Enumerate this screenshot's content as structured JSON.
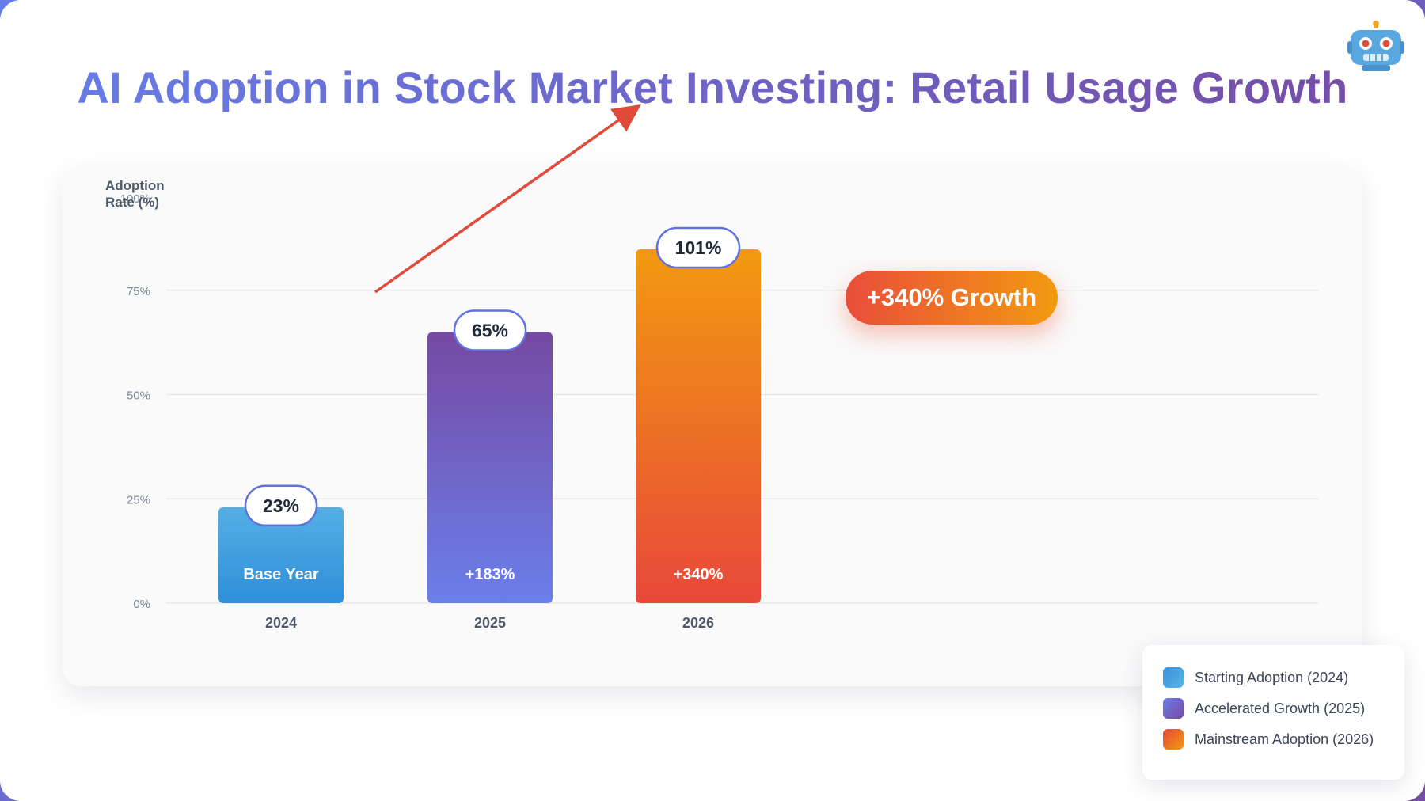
{
  "title": "AI Adoption in Stock Market Investing: Retail Usage Growth",
  "icons": {
    "robot": "robot-icon"
  },
  "colors": {
    "bar_2024": [
      "#2f8fd8",
      "#55aee5"
    ],
    "bar_2025": [
      "#6a7fea",
      "#7649a2"
    ],
    "bar_2026": [
      "#e8483a",
      "#f29a10"
    ],
    "accent": "#e04a3a",
    "title_gradient": [
      "#667eea",
      "#764ba2"
    ]
  },
  "growth_badge": "+340% Growth",
  "chart_data": {
    "type": "bar",
    "title": "AI Adoption in Stock Market Investing: Retail Usage Growth",
    "ylabel": "Adoption Rate (%)",
    "xlabel": "",
    "ylim": [
      0,
      100
    ],
    "y_ticks": [
      "0%",
      "25%",
      "50%",
      "75%",
      "100%"
    ],
    "y_tick_values": [
      0,
      25,
      50,
      75,
      100
    ],
    "categories": [
      "2024",
      "2025",
      "2026"
    ],
    "values": [
      23,
      65,
      101
    ],
    "value_labels": [
      "23%",
      "65%",
      "101%"
    ],
    "bar_labels": [
      "Base Year",
      "+183%",
      "+340%"
    ],
    "grid": true,
    "trend_arrow": true
  },
  "legend": {
    "items": [
      {
        "label": "Starting Adoption (2024)",
        "colors": [
          "#3a8fdc",
          "#5ab3e6"
        ]
      },
      {
        "label": "Accelerated Growth (2025)",
        "colors": [
          "#6a7fea",
          "#7649a2"
        ]
      },
      {
        "label": "Mainstream Adoption (2026)",
        "colors": [
          "#e8483a",
          "#f29a10"
        ]
      }
    ]
  }
}
